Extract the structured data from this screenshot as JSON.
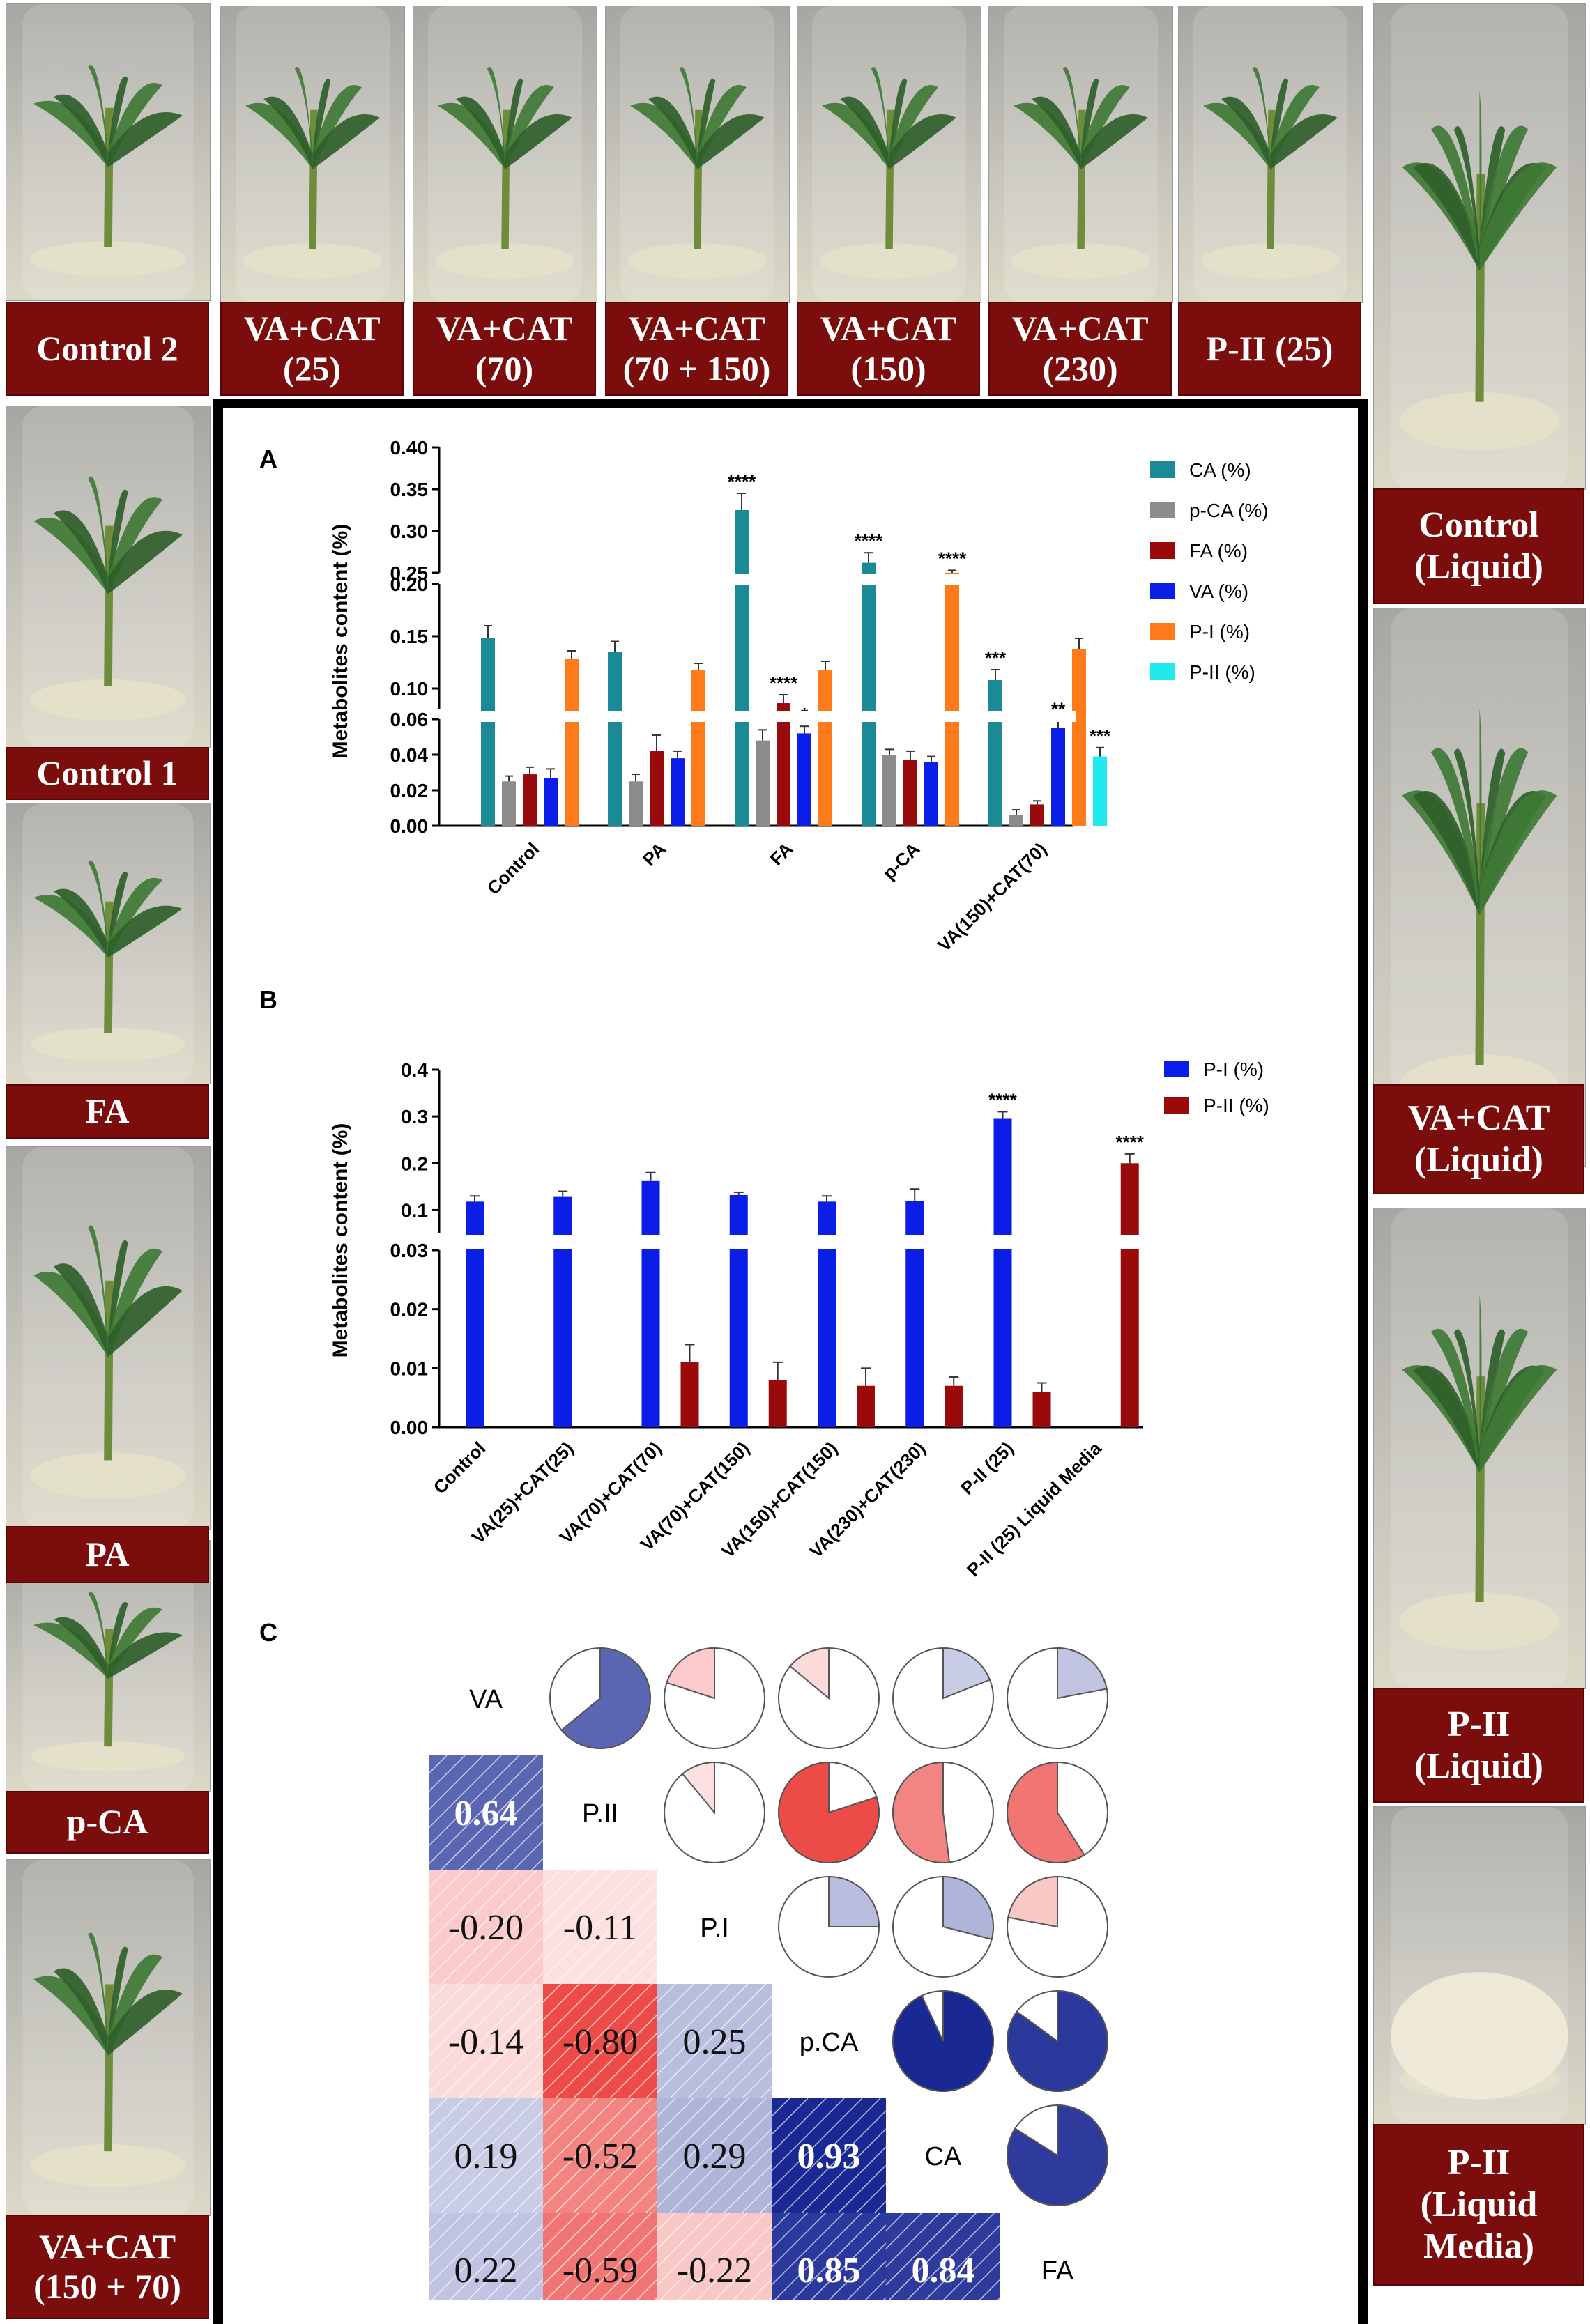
{
  "top_labels": [
    [
      "Control 2"
    ],
    [
      "VA+CAT",
      "(25)"
    ],
    [
      "VA+CAT",
      "(70)"
    ],
    [
      "VA+CAT",
      "(70 + 150)"
    ],
    [
      "VA+CAT",
      "(150)"
    ],
    [
      "VA+CAT",
      "(230)"
    ],
    [
      "P-II (25)"
    ]
  ],
  "left_labels": [
    [
      "Control 1"
    ],
    [
      "FA"
    ],
    [
      "PA"
    ],
    [
      "p-CA"
    ],
    [
      "VA+CAT",
      "(150 + 70)"
    ]
  ],
  "right_labels": [
    [
      "Control",
      "(Liquid)"
    ],
    [
      "VA+CAT",
      "(Liquid)"
    ],
    [
      "P-II",
      "(Liquid)"
    ],
    [
      "P-II",
      "(Liquid",
      "Media)"
    ]
  ],
  "colors": {
    "label_bg": "#7b0d0d",
    "CA": "#1a8a96",
    "pCA": "#8c8c8c",
    "FA": "#9b0a0a",
    "VA": "#0b1ee8",
    "PI": "#ff7a1a",
    "PII": "#22e8f0",
    "B_PI": "#0b1ee8",
    "B_PII": "#9b0a0a",
    "corr_pos": "#0a1a8c",
    "corr_neg": "#e8231e"
  },
  "chart_data": [
    {
      "panel": "A",
      "type": "bar",
      "ylabel": "Metabolites content (%)",
      "categories": [
        "Control",
        "PA",
        "FA",
        "p-CA",
        "VA(150)+CAT(70)"
      ],
      "y_broken_segments": [
        [
          0,
          0.06
        ],
        [
          0.08,
          0.2
        ],
        [
          0.25,
          0.4
        ]
      ],
      "yticks": {
        "low": [
          "0.00",
          "0.02",
          "0.04",
          "0.06"
        ],
        "mid": [
          "0.10",
          "0.15",
          "0.20"
        ],
        "high": [
          "0.25",
          "0.30",
          "0.35",
          "0.40"
        ]
      },
      "series": [
        {
          "name": "CA (%)",
          "values": [
            0.148,
            0.135,
            0.325,
            0.262,
            0.108
          ],
          "errors": [
            0.012,
            0.01,
            0.02,
            0.012,
            0.01
          ],
          "sig": [
            "",
            "",
            "****",
            "****",
            "***"
          ]
        },
        {
          "name": "p-CA (%)",
          "values": [
            0.025,
            0.025,
            0.048,
            0.04,
            0.006
          ],
          "errors": [
            0.003,
            0.004,
            0.006,
            0.003,
            0.003
          ],
          "sig": [
            "",
            "",
            "",
            "",
            ""
          ]
        },
        {
          "name": "FA (%)",
          "values": [
            0.029,
            0.042,
            0.086,
            0.037,
            0.012
          ],
          "errors": [
            0.004,
            0.009,
            0.008,
            0.005,
            0.002
          ],
          "sig": [
            "",
            "",
            "****",
            "",
            ""
          ]
        },
        {
          "name": "VA (%)",
          "values": [
            0.027,
            0.038,
            0.052,
            0.036,
            0.055
          ],
          "errors": [
            0.005,
            0.004,
            0.004,
            0.003,
            0.004
          ],
          "sig": [
            "",
            "",
            "*",
            "",
            "**"
          ]
        },
        {
          "name": "P-I (%)",
          "values": [
            0.128,
            0.118,
            0.118,
            0.243,
            0.138
          ],
          "errors": [
            0.008,
            0.006,
            0.008,
            0.01,
            0.01
          ],
          "sig": [
            "",
            "",
            "",
            "****",
            ""
          ]
        },
        {
          "name": "P-II (%)",
          "values": [
            0,
            0,
            0,
            0,
            0.039
          ],
          "errors": [
            0,
            0,
            0,
            0,
            0.005
          ],
          "sig": [
            "",
            "",
            "",
            "",
            "***"
          ]
        }
      ]
    },
    {
      "panel": "B",
      "type": "bar",
      "ylabel": "Metabolites content (%)",
      "categories": [
        "Control",
        "VA(25)+CAT(25)",
        "VA(70)+CAT(70)",
        "VA(70)+CAT(150)",
        "VA(150)+CAT(150)",
        "VA(230)+CAT(230)",
        "P-II (25)",
        "P-II (25) Liquid Media"
      ],
      "y_broken_segments": [
        [
          0,
          0.03
        ],
        [
          0.05,
          0.4
        ]
      ],
      "yticks": {
        "low": [
          "0.00",
          "0.01",
          "0.02",
          "0.03"
        ],
        "high": [
          "0.1",
          "0.2",
          "0.3",
          "0.4"
        ]
      },
      "series": [
        {
          "name": "P-I (%)",
          "values": [
            0.118,
            0.128,
            0.162,
            0.132,
            0.118,
            0.12,
            0.295,
            0
          ],
          "errors": [
            0.012,
            0.012,
            0.018,
            0.006,
            0.012,
            0.025,
            0.015,
            0
          ],
          "sig": [
            "",
            "",
            "",
            "",
            "",
            "",
            "****",
            ""
          ]
        },
        {
          "name": "P-II (%)",
          "values": [
            0,
            0,
            0.011,
            0.008,
            0.007,
            0.007,
            0.006,
            0.2
          ],
          "errors": [
            0,
            0,
            0.003,
            0.003,
            0.003,
            0.0015,
            0.0015,
            0.02
          ],
          "sig": [
            "",
            "",
            "",
            "",
            "",
            "",
            "",
            "****"
          ]
        }
      ]
    },
    {
      "panel": "C",
      "type": "heatmap",
      "variables": [
        "VA",
        "P.II",
        "P.I",
        "p.CA",
        "CA",
        "FA"
      ],
      "lower_values": [
        [
          1,
          0.64,
          -0.2,
          -0.14,
          0.19,
          0.22
        ],
        [
          0.64,
          1,
          -0.11,
          -0.8,
          -0.52,
          -0.59
        ],
        [
          -0.2,
          -0.11,
          1,
          0.25,
          0.29,
          -0.22
        ],
        [
          -0.14,
          -0.8,
          0.25,
          1,
          0.93,
          0.85
        ],
        [
          0.19,
          -0.52,
          0.29,
          0.93,
          1,
          0.84
        ],
        [
          0.22,
          -0.59,
          -0.22,
          0.85,
          0.84,
          1
        ]
      ],
      "lower_labels": [
        [
          "0.64"
        ],
        [
          "-0.20",
          "-0.11"
        ],
        [
          "-0.14",
          "-0.80",
          "0.25"
        ],
        [
          "0.19",
          "-0.52",
          "0.29",
          "0.93"
        ],
        [
          "0.22",
          "-0.59",
          "-0.22",
          "0.85",
          "0.84"
        ]
      ]
    }
  ],
  "panel_letters": [
    "A",
    "B",
    "C"
  ]
}
